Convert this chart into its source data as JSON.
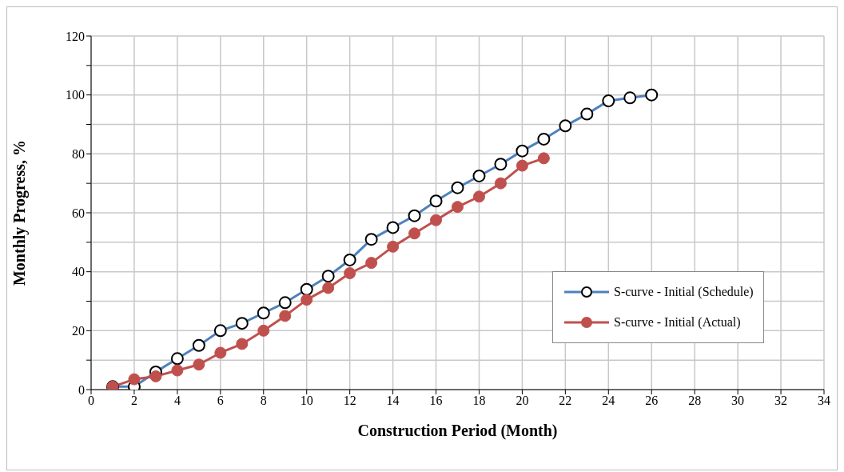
{
  "chart_data": {
    "type": "line",
    "xlabel": "Construction Period (Month)",
    "ylabel": "Monthly Progress, %",
    "x": [
      1,
      2,
      3,
      4,
      5,
      6,
      7,
      8,
      9,
      10,
      11,
      12,
      13,
      14,
      15,
      16,
      17,
      18,
      19,
      20,
      21,
      22,
      23,
      24,
      25,
      26
    ],
    "series": [
      {
        "name": "S-curve - Initial (Schedule)",
        "color": "#4f81bd",
        "values": [
          1,
          1,
          6,
          10.5,
          15,
          20,
          22.5,
          26,
          29.5,
          34,
          38.5,
          44,
          51,
          55,
          59,
          64,
          68.5,
          72.5,
          76.5,
          81,
          85,
          89.5,
          93.5,
          98,
          99,
          100
        ]
      },
      {
        "name": "S-curve - Initial (Actual)",
        "color": "#c0504d",
        "values": [
          1,
          3.5,
          4.5,
          6.5,
          8.5,
          12.5,
          15.5,
          20,
          25,
          30.5,
          34.5,
          39.5,
          43,
          48.5,
          53,
          57.5,
          62,
          65.5,
          70,
          76,
          78.5,
          null,
          null,
          null,
          null,
          null
        ]
      }
    ],
    "xlim": [
      0,
      34
    ],
    "xticks": [
      0,
      2,
      4,
      6,
      8,
      10,
      12,
      14,
      16,
      18,
      20,
      22,
      24,
      26,
      28,
      30,
      32,
      34
    ],
    "ylim": [
      0,
      120
    ],
    "yticks": [
      0,
      {
        "value": 10,
        "label": null
      },
      20,
      {
        "value": 30,
        "label": null
      },
      40,
      {
        "value": 50,
        "label": null
      },
      60,
      {
        "value": 70,
        "label": null
      },
      80,
      {
        "value": 90,
        "label": null
      },
      100,
      {
        "value": 110,
        "label": null
      },
      120
    ],
    "grid": true,
    "legend": "bottom right",
    "marker": "circle",
    "line_style": "solid"
  }
}
